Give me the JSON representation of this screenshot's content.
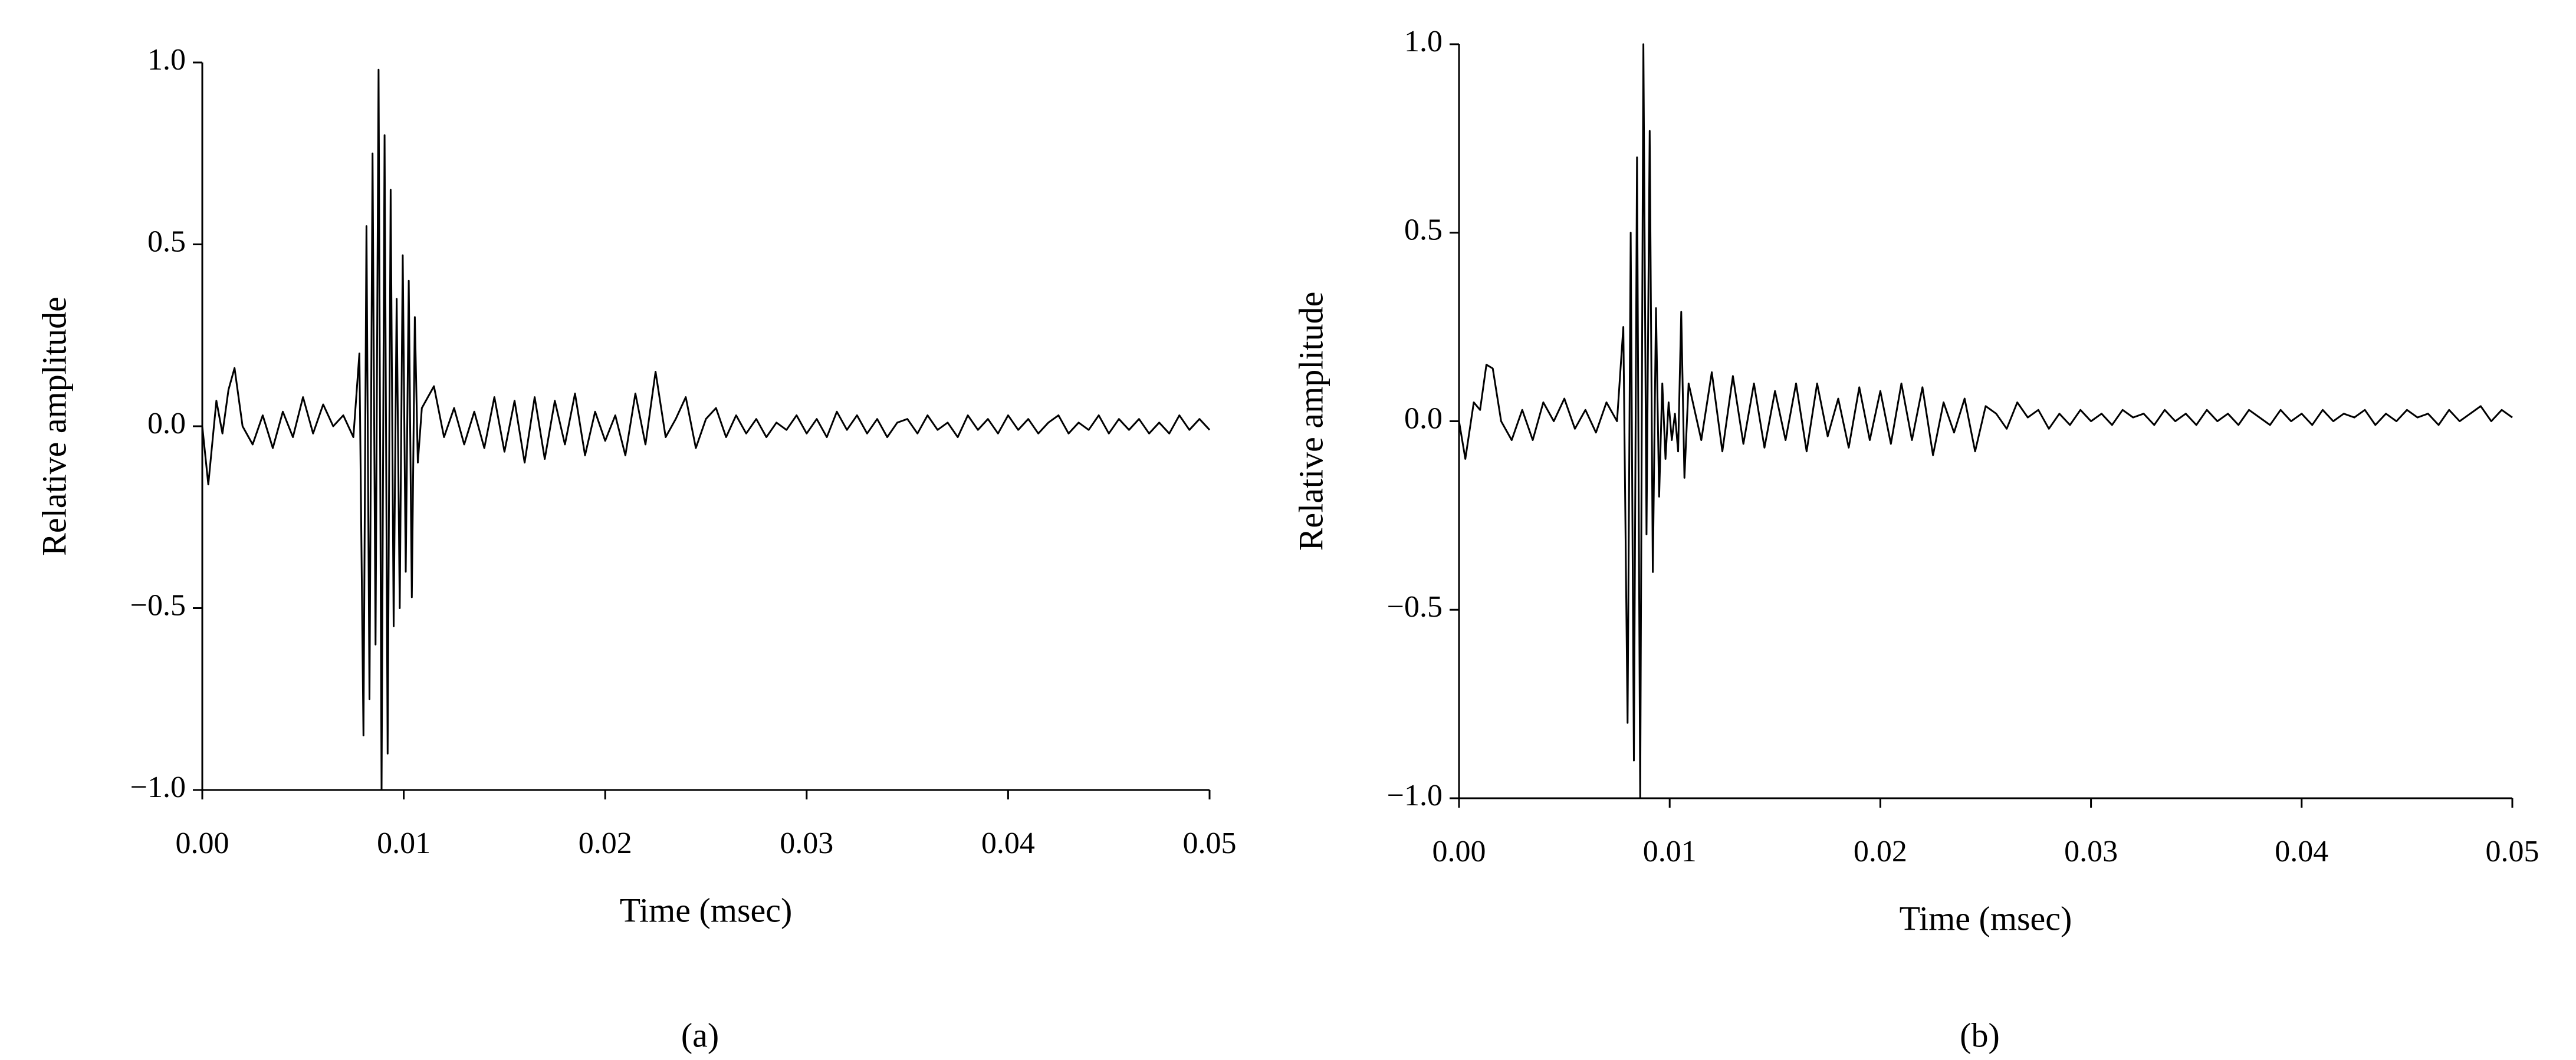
{
  "chart_data": [
    {
      "type": "line",
      "caption": "(a)",
      "x_label": "Time (msec)",
      "y_label": "Relative amplitude",
      "color": "#000000",
      "xlim": [
        0,
        0.05
      ],
      "ylim": [
        -1,
        1
      ],
      "xticks": [
        {
          "value": 0,
          "label": "0.00"
        },
        0.01,
        0.02,
        0.03,
        0.04,
        0.05
      ],
      "yticks": [
        {
          "value": -1,
          "label": "−1.0"
        },
        {
          "value": -0.5,
          "label": "−0.5"
        },
        {
          "value": 0,
          "label": "0.0"
        },
        0.5,
        {
          "value": 1,
          "label": "1.0"
        }
      ],
      "x": [
        0,
        0.0003,
        0.0007,
        0.001,
        0.0013,
        0.0016,
        0.002,
        0.0025,
        0.003,
        0.0035,
        0.004,
        0.0045,
        0.005,
        0.0055,
        0.006,
        0.0065,
        0.007,
        0.0075,
        0.0078,
        0.008,
        0.00815,
        0.0083,
        0.00845,
        0.0086,
        0.00875,
        0.0089,
        0.00905,
        0.0092,
        0.00935,
        0.0095,
        0.00965,
        0.0098,
        0.00995,
        0.0101,
        0.01025,
        0.0104,
        0.01055,
        0.0107,
        0.0109,
        0.0115,
        0.012,
        0.0125,
        0.013,
        0.0135,
        0.014,
        0.0145,
        0.015,
        0.0155,
        0.016,
        0.0165,
        0.017,
        0.0175,
        0.018,
        0.0185,
        0.019,
        0.0195,
        0.02,
        0.0205,
        0.021,
        0.0215,
        0.022,
        0.0225,
        0.023,
        0.0235,
        0.024,
        0.0245,
        0.025,
        0.0255,
        0.026,
        0.0265,
        0.027,
        0.0275,
        0.028,
        0.0285,
        0.029,
        0.0295,
        0.03,
        0.0305,
        0.031,
        0.0315,
        0.032,
        0.0325,
        0.033,
        0.0335,
        0.034,
        0.0345,
        0.035,
        0.0355,
        0.036,
        0.0365,
        0.037,
        0.0375,
        0.038,
        0.0385,
        0.039,
        0.0395,
        0.04,
        0.0405,
        0.041,
        0.0415,
        0.042,
        0.0425,
        0.043,
        0.0435,
        0.044,
        0.0445,
        0.045,
        0.0455,
        0.046,
        0.0465,
        0.047,
        0.0475,
        0.048,
        0.0485,
        0.049,
        0.0495,
        0.05
      ],
      "values": [
        0,
        -0.16,
        0.07,
        -0.02,
        0.1,
        0.16,
        0.0,
        -0.05,
        0.03,
        -0.06,
        0.04,
        -0.03,
        0.08,
        -0.02,
        0.06,
        0.0,
        0.03,
        -0.03,
        0.2,
        -0.85,
        0.55,
        -0.75,
        0.75,
        -0.6,
        0.98,
        -1.0,
        0.8,
        -0.9,
        0.65,
        -0.55,
        0.35,
        -0.5,
        0.47,
        -0.4,
        0.4,
        -0.47,
        0.3,
        -0.1,
        0.05,
        0.11,
        -0.03,
        0.05,
        -0.05,
        0.04,
        -0.06,
        0.08,
        -0.07,
        0.07,
        -0.1,
        0.08,
        -0.09,
        0.07,
        -0.05,
        0.09,
        -0.08,
        0.04,
        -0.04,
        0.03,
        -0.08,
        0.09,
        -0.05,
        0.15,
        -0.03,
        0.02,
        0.08,
        -0.06,
        0.02,
        0.05,
        -0.03,
        0.03,
        -0.02,
        0.02,
        -0.03,
        0.01,
        -0.01,
        0.03,
        -0.02,
        0.02,
        -0.03,
        0.04,
        -0.01,
        0.03,
        -0.02,
        0.02,
        -0.03,
        0.01,
        0.02,
        -0.02,
        0.03,
        -0.01,
        0.01,
        -0.03,
        0.03,
        -0.01,
        0.02,
        -0.02,
        0.03,
        -0.01,
        0.02,
        -0.02,
        0.01,
        0.03,
        -0.02,
        0.01,
        -0.01,
        0.03,
        -0.02,
        0.02,
        -0.01,
        0.02,
        -0.02,
        0.01,
        -0.02,
        0.03,
        -0.01,
        0.02,
        -0.01
      ]
    },
    {
      "type": "line",
      "caption": "(b)",
      "x_label": "Time (msec)",
      "y_label": "Relative amplitude",
      "color": "#000000",
      "xlim": [
        0,
        0.05
      ],
      "ylim": [
        -1,
        1
      ],
      "xticks": [
        {
          "value": 0,
          "label": "0.00"
        },
        0.01,
        0.02,
        0.03,
        0.04,
        0.05
      ],
      "yticks": [
        {
          "value": -1,
          "label": "−1.0"
        },
        {
          "value": -0.5,
          "label": "−0.5"
        },
        {
          "value": 0,
          "label": "0.0"
        },
        0.5,
        {
          "value": 1,
          "label": "1.0"
        }
      ],
      "x": [
        0,
        0.0003,
        0.0007,
        0.001,
        0.0013,
        0.0016,
        0.002,
        0.0025,
        0.003,
        0.0035,
        0.004,
        0.0045,
        0.005,
        0.0055,
        0.006,
        0.0065,
        0.007,
        0.0075,
        0.0078,
        0.008,
        0.00815,
        0.0083,
        0.00845,
        0.0086,
        0.00875,
        0.0089,
        0.00905,
        0.0092,
        0.00935,
        0.0095,
        0.00965,
        0.0098,
        0.00995,
        0.0101,
        0.01025,
        0.0104,
        0.01055,
        0.0107,
        0.0109,
        0.0115,
        0.012,
        0.0125,
        0.013,
        0.0135,
        0.014,
        0.0145,
        0.015,
        0.0155,
        0.016,
        0.0165,
        0.017,
        0.0175,
        0.018,
        0.0185,
        0.019,
        0.0195,
        0.02,
        0.0205,
        0.021,
        0.0215,
        0.022,
        0.0225,
        0.023,
        0.0235,
        0.024,
        0.0245,
        0.025,
        0.0255,
        0.026,
        0.0265,
        0.027,
        0.0275,
        0.028,
        0.0285,
        0.029,
        0.0295,
        0.03,
        0.0305,
        0.031,
        0.0315,
        0.032,
        0.0325,
        0.033,
        0.0335,
        0.034,
        0.0345,
        0.035,
        0.0355,
        0.036,
        0.0365,
        0.037,
        0.0375,
        0.038,
        0.0385,
        0.039,
        0.0395,
        0.04,
        0.0405,
        0.041,
        0.0415,
        0.042,
        0.0425,
        0.043,
        0.0435,
        0.044,
        0.0445,
        0.045,
        0.0455,
        0.046,
        0.0465,
        0.047,
        0.0475,
        0.048,
        0.0485,
        0.049,
        0.0495,
        0.05
      ],
      "values": [
        0,
        -0.1,
        0.05,
        0.03,
        0.15,
        0.14,
        0.0,
        -0.05,
        0.03,
        -0.05,
        0.05,
        0.0,
        0.06,
        -0.02,
        0.03,
        -0.03,
        0.05,
        0.0,
        0.25,
        -0.8,
        0.5,
        -0.9,
        0.7,
        -1.0,
        1.0,
        -0.3,
        0.77,
        -0.4,
        0.3,
        -0.2,
        0.1,
        -0.1,
        0.05,
        -0.05,
        0.02,
        -0.08,
        0.29,
        -0.15,
        0.1,
        -0.05,
        0.13,
        -0.08,
        0.12,
        -0.06,
        0.1,
        -0.07,
        0.08,
        -0.05,
        0.1,
        -0.08,
        0.1,
        -0.04,
        0.06,
        -0.07,
        0.09,
        -0.05,
        0.08,
        -0.06,
        0.1,
        -0.05,
        0.09,
        -0.09,
        0.05,
        -0.03,
        0.06,
        -0.08,
        0.04,
        0.02,
        -0.02,
        0.05,
        0.01,
        0.03,
        -0.02,
        0.02,
        -0.01,
        0.03,
        0.0,
        0.02,
        -0.01,
        0.03,
        0.01,
        0.02,
        -0.01,
        0.03,
        0.0,
        0.02,
        -0.01,
        0.03,
        0.0,
        0.02,
        -0.01,
        0.03,
        0.01,
        -0.01,
        0.03,
        0.0,
        0.02,
        -0.01,
        0.03,
        0.0,
        0.02,
        0.01,
        0.03,
        -0.01,
        0.02,
        0.0,
        0.03,
        0.01,
        0.02,
        -0.01,
        0.03,
        0.0,
        0.02,
        0.04,
        0.0,
        0.03,
        0.01
      ]
    }
  ]
}
